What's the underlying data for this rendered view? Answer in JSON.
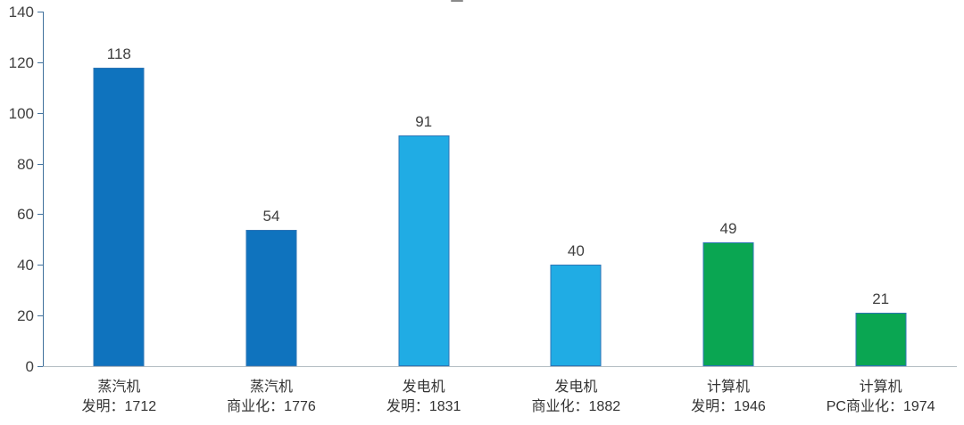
{
  "chart_data": {
    "type": "bar",
    "title": "",
    "note": "title cropped out of frame; only a tiny fragment of one character visible at top center",
    "categories": [
      {
        "name": "蒸汽机",
        "event": "发明：1712"
      },
      {
        "name": "蒸汽机",
        "event": "商业化：1776"
      },
      {
        "name": "发电机",
        "event": "发明：1831"
      },
      {
        "name": "发电机",
        "event": "商业化：1882"
      },
      {
        "name": "计算机",
        "event": "发明：1946"
      },
      {
        "name": "计算机",
        "event": "PC商业化：1974"
      }
    ],
    "values": [
      118,
      54,
      91,
      40,
      49,
      21
    ],
    "value_labels": [
      "118",
      "54",
      "91",
      "40",
      "49",
      "21"
    ],
    "bar_colors": [
      "#0f73be",
      "#0f73be",
      "#20ace4",
      "#20ace4",
      "#0aa652",
      "#0aa652"
    ],
    "bar_border_color": "#2e75b6",
    "yticks": [
      0,
      20,
      40,
      60,
      80,
      100,
      120,
      140
    ],
    "ytick_labels": [
      "0",
      "20",
      "40",
      "60",
      "80",
      "100",
      "120",
      "140"
    ],
    "ylim": [
      0,
      140
    ],
    "xlabel": "",
    "ylabel": "",
    "grid": false,
    "legend": null,
    "axis_color": "#41719c",
    "baseline_color": "#b3bcc2",
    "label_color": "#404040"
  }
}
